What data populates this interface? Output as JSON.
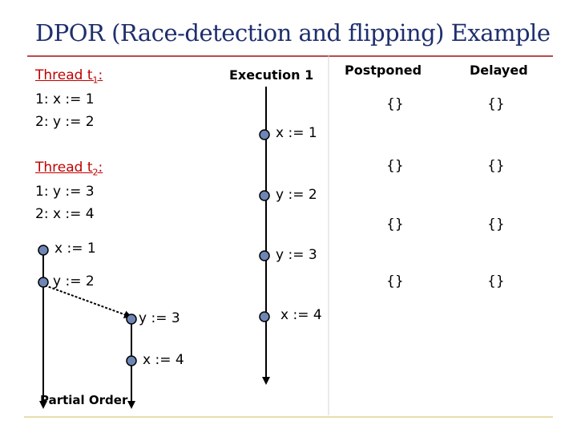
{
  "title": "DPOR (Race-detection and flipping) Example",
  "thread1": {
    "name": "Thread t",
    "sub": "1",
    "colon": ":",
    "lines": [
      "1: x := 1",
      "2: y := 2"
    ]
  },
  "thread2": {
    "name": "Thread t",
    "sub": "2",
    "colon": ":",
    "lines": [
      "1: y := 3",
      "2: x := 4"
    ]
  },
  "execution": {
    "label": "Execution 1",
    "events": [
      "x := 1",
      "y := 2",
      "y := 3",
      "x := 4"
    ]
  },
  "partial_order": {
    "label": "Partial Order",
    "left_events": [
      "x := 1",
      "y := 2"
    ],
    "right_events": [
      "y := 3",
      "x := 4"
    ]
  },
  "table": {
    "headers": [
      "Postponed",
      "Delayed"
    ],
    "rows": [
      [
        "{}",
        "{}"
      ],
      [
        "{}",
        "{}"
      ],
      [
        "{}",
        "{}"
      ],
      [
        "{}",
        "{}"
      ]
    ]
  },
  "colors": {
    "title": "#1f2f6e",
    "accent": "#c00000",
    "node_fill": "#6d86b5",
    "footer_line": "#e0d090"
  }
}
